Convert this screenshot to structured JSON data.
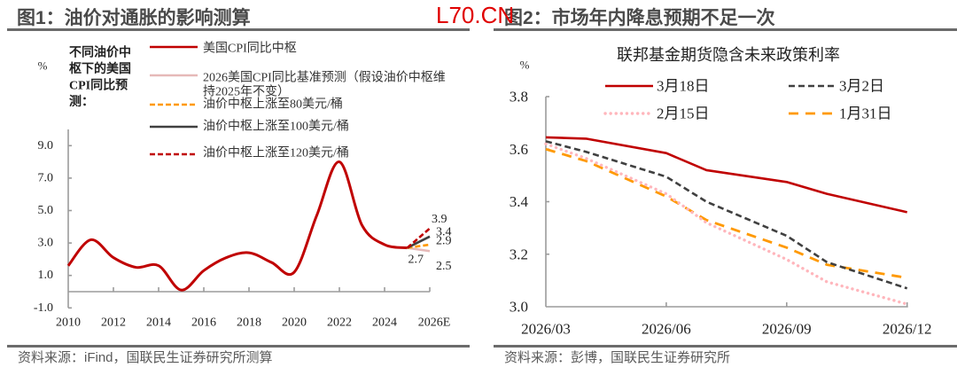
{
  "watermark": "L70.CN",
  "figures": [
    {
      "title": "图1：油价对通胀的影响测算",
      "source": "资料来源：iFind，国联民生证券研究所测算"
    },
    {
      "title": "图2：市场年内降息预期不足一次",
      "source": "资料来源：彭博，国联民生证券研究所"
    }
  ],
  "chart_data": [
    {
      "type": "line",
      "title": "",
      "xlabel": "",
      "ylabel": "%",
      "side_note": [
        "不同油价中",
        "枢下的美国",
        "CPI同比预",
        "测："
      ],
      "xlim": [
        2010,
        2026
      ],
      "ylim": [
        -1,
        10
      ],
      "xticks": [
        "2010",
        "2012",
        "2014",
        "2016",
        "2018",
        "2020",
        "2022",
        "2024",
        "2026E"
      ],
      "yticks": [
        "9.0",
        "7.0",
        "5.0",
        "3.0",
        "1.0",
        "-1.0"
      ],
      "grid": false,
      "legend": "top",
      "series": [
        {
          "name": "美国CPI同比中枢",
          "color": "#C00000",
          "style": "solid",
          "smooth": true,
          "x": [
            2010,
            2011,
            2012,
            2013,
            2014,
            2015,
            2016,
            2017,
            2018,
            2019,
            2020,
            2021,
            2022,
            2023,
            2024,
            2025
          ],
          "values": [
            1.6,
            3.2,
            2.1,
            1.5,
            1.6,
            0.1,
            1.3,
            2.1,
            2.4,
            1.8,
            1.2,
            4.7,
            8.0,
            4.1,
            2.9,
            2.7
          ]
        },
        {
          "name": "2026美国CPI同比基准预测（假设油价中枢维持2025年不变）",
          "legend_lines": [
            "2026美国CPI同比基准预测（假设油价中枢维",
            "持2025年不变）"
          ],
          "color": "#E6B9B8",
          "style": "solid",
          "x": [
            2025,
            2026
          ],
          "values": [
            2.7,
            2.5
          ]
        },
        {
          "name": "油价中枢上涨至80美元/桶",
          "color": "#FF9900",
          "style": "dashed",
          "x": [
            2025,
            2026
          ],
          "values": [
            2.7,
            2.9
          ]
        },
        {
          "name": "油价中枢上涨至100美元/桶",
          "color": "#404040",
          "style": "solid",
          "x": [
            2025,
            2026
          ],
          "values": [
            2.7,
            3.4
          ]
        },
        {
          "name": "油价中枢上涨至120美元/桶",
          "color": "#C00000",
          "style": "dashed",
          "x": [
            2025,
            2026
          ],
          "values": [
            2.7,
            3.9
          ]
        }
      ],
      "data_labels": [
        {
          "x": 2025,
          "y": 2.7,
          "text": "2.7"
        },
        {
          "x": 2026,
          "y": 3.9,
          "text": "3.9"
        },
        {
          "x": 2026,
          "y": 3.4,
          "text": "3.4"
        },
        {
          "x": 2026,
          "y": 2.9,
          "text": "2.9"
        },
        {
          "x": 2026,
          "y": 2.5,
          "text": "2.5"
        }
      ]
    },
    {
      "type": "line",
      "title": "联邦基金期货隐含未来政策利率",
      "xlabel": "",
      "ylabel": "%",
      "categories": [
        "2026/03",
        "2026/04",
        "2026/06",
        "2026/07",
        "2026/09",
        "2026/10",
        "2026/12"
      ],
      "xticks": [
        "2026/03",
        "2026/06",
        "2026/09",
        "2026/12"
      ],
      "yticks": [
        "3.8",
        "3.6",
        "3.4",
        "3.2",
        "3.0"
      ],
      "ylim": [
        3.0,
        3.8
      ],
      "grid": false,
      "legend": "top",
      "series": [
        {
          "name": "3月18日",
          "color": "#C00000",
          "style": "solid",
          "values": [
            3.645,
            3.64,
            3.585,
            3.52,
            3.475,
            3.43,
            3.36
          ]
        },
        {
          "name": "3月2日",
          "color": "#404040",
          "style": "dashed",
          "values": [
            3.63,
            3.59,
            3.495,
            3.4,
            3.27,
            3.17,
            3.07
          ]
        },
        {
          "name": "2月15日",
          "color": "#FFB6BC",
          "style": "dotted",
          "values": [
            3.62,
            3.565,
            3.43,
            3.32,
            3.18,
            3.095,
            3.01
          ]
        },
        {
          "name": "1月31日",
          "color": "#FF9900",
          "style": "dashed-long",
          "values": [
            3.6,
            3.555,
            3.42,
            3.33,
            3.225,
            3.16,
            3.11
          ]
        }
      ]
    }
  ]
}
